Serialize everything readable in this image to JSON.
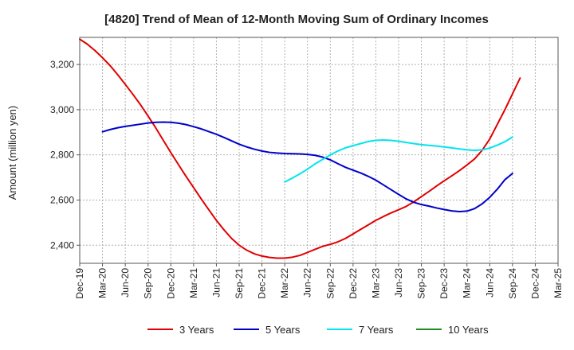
{
  "chart_data": {
    "type": "line",
    "title": "[4820]  Trend of Mean of 12-Month Moving Sum of Ordinary Incomes",
    "xlabel": "",
    "ylabel": "Amount (million yen)",
    "ylim": [
      2320,
      3320
    ],
    "yticks": [
      2400,
      2600,
      2800,
      3000,
      3200
    ],
    "ytick_labels": [
      "2,400",
      "2,600",
      "2,800",
      "3,000",
      "3,200"
    ],
    "x_labels": [
      "Dec-19",
      "Mar-20",
      "Jun-20",
      "Sep-20",
      "Dec-20",
      "Mar-21",
      "Jun-21",
      "Sep-21",
      "Dec-21",
      "Mar-22",
      "Jun-22",
      "Sep-22",
      "Dec-22",
      "Mar-23",
      "Jun-23",
      "Sep-23",
      "Dec-23",
      "Mar-24",
      "Jun-24",
      "Sep-24",
      "Dec-24",
      "Mar-25"
    ],
    "x_count_months": 63,
    "grid": true,
    "legend_position": "bottom",
    "series": [
      {
        "name": "3 Years",
        "color": "#e00000",
        "start_month": 0,
        "values": [
          3312,
          3290,
          3262,
          3230,
          3195,
          3155,
          3112,
          3068,
          3022,
          2972,
          2920,
          2865,
          2810,
          2757,
          2705,
          2655,
          2605,
          2557,
          2510,
          2468,
          2430,
          2400,
          2378,
          2362,
          2352,
          2346,
          2343,
          2343,
          2347,
          2355,
          2368,
          2382,
          2395,
          2404,
          2415,
          2430,
          2450,
          2470,
          2490,
          2510,
          2527,
          2543,
          2557,
          2572,
          2592,
          2615,
          2638,
          2662,
          2685,
          2707,
          2730,
          2755,
          2782,
          2820,
          2870,
          2935,
          3000,
          3070,
          3140
        ]
      },
      {
        "name": "5 Years",
        "color": "#0000cc",
        "start_month": 3,
        "values": [
          2902,
          2912,
          2920,
          2926,
          2931,
          2936,
          2941,
          2944,
          2945,
          2944,
          2940,
          2934,
          2925,
          2915,
          2903,
          2891,
          2877,
          2862,
          2847,
          2835,
          2825,
          2817,
          2811,
          2808,
          2806,
          2805,
          2804,
          2802,
          2798,
          2790,
          2778,
          2761,
          2745,
          2732,
          2720,
          2705,
          2688,
          2667,
          2646,
          2625,
          2605,
          2590,
          2580,
          2573,
          2565,
          2558,
          2552,
          2549,
          2551,
          2562,
          2583,
          2612,
          2648,
          2690,
          2718
        ]
      },
      {
        "name": "7 Years",
        "color": "#00e5ee",
        "start_month": 27,
        "values": [
          2680,
          2697,
          2716,
          2737,
          2760,
          2780,
          2800,
          2817,
          2831,
          2841,
          2850,
          2859,
          2864,
          2866,
          2864,
          2860,
          2855,
          2850,
          2845,
          2842,
          2839,
          2835,
          2831,
          2826,
          2822,
          2820,
          2822,
          2830,
          2843,
          2858,
          2879
        ]
      },
      {
        "name": "10 Years",
        "color": "#228b22",
        "start_month": 0,
        "values": []
      }
    ]
  }
}
